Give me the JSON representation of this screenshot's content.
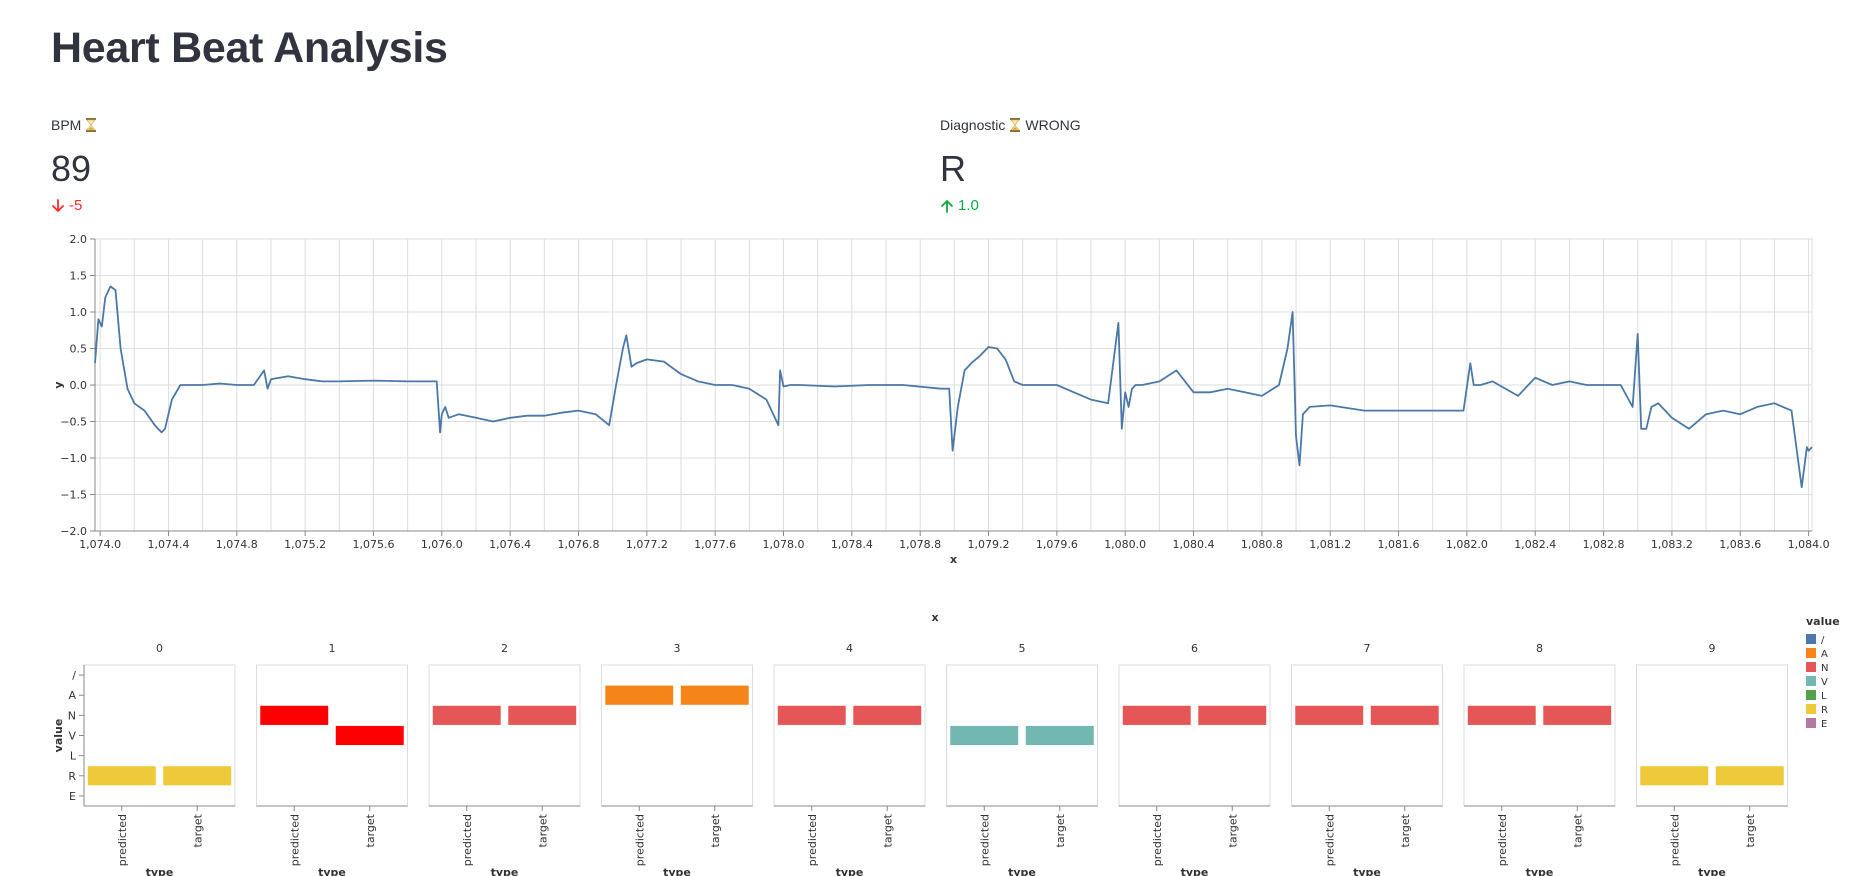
{
  "page": {
    "title": "Heart Beat Analysis"
  },
  "metrics": {
    "bpm": {
      "label": "BPM",
      "icon": "hourglass-icon",
      "value": "89",
      "delta": "-5",
      "delta_direction": "down"
    },
    "diagnostic": {
      "label": "Diagnostic",
      "icon": "hourglass-icon",
      "label_suffix": "WRONG",
      "value": "R",
      "delta": "1.0",
      "delta_direction": "up"
    }
  },
  "colors": {
    "line": "#4c78a8",
    "delta_down": "#ff2b2b",
    "delta_up": "#09ab3b",
    "highlight_red": "#ff0000"
  },
  "chart_data": [
    {
      "type": "line",
      "xlabel": "x",
      "ylabel": "y",
      "xlim": [
        1073.97,
        1084.02
      ],
      "ylim": [
        -2.0,
        2.0
      ],
      "x_ticks": [
        "1,074.0",
        "1,074.4",
        "1,074.8",
        "1,075.2",
        "1,075.6",
        "1,076.0",
        "1,076.4",
        "1,076.8",
        "1,077.2",
        "1,077.6",
        "1,078.0",
        "1,078.4",
        "1,078.8",
        "1,079.2",
        "1,079.6",
        "1,080.0",
        "1,080.4",
        "1,080.8",
        "1,081.2",
        "1,081.6",
        "1,082.0",
        "1,082.4",
        "1,082.8",
        "1,083.2",
        "1,083.6",
        "1,084.0"
      ],
      "y_ticks": [
        "2.0",
        "1.5",
        "1.0",
        "0.5",
        "0.0",
        "−0.5",
        "−1.0",
        "−1.5",
        "−2.0"
      ],
      "grid": true,
      "series": [
        {
          "x": [
            1073.97,
            1073.99,
            1074.01,
            1074.03,
            1074.06,
            1074.09,
            1074.12,
            1074.16,
            1074.2,
            1074.26,
            1074.32,
            1074.36,
            1074.38,
            1074.42,
            1074.47,
            1074.52,
            1074.6,
            1074.7,
            1074.8,
            1074.9,
            1074.96,
            1074.98,
            1075.0,
            1075.05,
            1075.1,
            1075.2,
            1075.3,
            1075.4,
            1075.6,
            1075.8,
            1075.97,
            1075.99,
            1076.0,
            1076.02,
            1076.04,
            1076.1,
            1076.2,
            1076.3,
            1076.4,
            1076.5,
            1076.6,
            1076.7,
            1076.8,
            1076.9,
            1076.98,
            1077.02,
            1077.06,
            1077.08,
            1077.11,
            1077.14,
            1077.2,
            1077.3,
            1077.4,
            1077.5,
            1077.6,
            1077.7,
            1077.8,
            1077.9,
            1077.97,
            1077.98,
            1078.0,
            1078.04,
            1078.1,
            1078.3,
            1078.5,
            1078.7,
            1078.92,
            1078.97,
            1078.99,
            1079.02,
            1079.06,
            1079.1,
            1079.15,
            1079.2,
            1079.25,
            1079.3,
            1079.35,
            1079.4,
            1079.5,
            1079.6,
            1079.7,
            1079.8,
            1079.9,
            1079.96,
            1079.98,
            1080.0,
            1080.02,
            1080.04,
            1080.06,
            1080.1,
            1080.2,
            1080.3,
            1080.4,
            1080.5,
            1080.6,
            1080.7,
            1080.8,
            1080.9,
            1080.95,
            1080.98,
            1081.0,
            1081.02,
            1081.04,
            1081.08,
            1081.2,
            1081.4,
            1081.6,
            1081.8,
            1081.98,
            1082.02,
            1082.04,
            1082.08,
            1082.15,
            1082.3,
            1082.4,
            1082.5,
            1082.6,
            1082.7,
            1082.8,
            1082.9,
            1082.97,
            1083.0,
            1083.02,
            1083.05,
            1083.08,
            1083.12,
            1083.2,
            1083.3,
            1083.4,
            1083.5,
            1083.6,
            1083.7,
            1083.8,
            1083.9,
            1083.96,
            1083.99,
            1084.0,
            1084.02
          ],
          "y": [
            0.3,
            0.9,
            0.8,
            1.2,
            1.35,
            1.3,
            0.5,
            -0.05,
            -0.25,
            -0.35,
            -0.55,
            -0.65,
            -0.6,
            -0.2,
            0.0,
            0.0,
            0.0,
            0.02,
            0.0,
            0.0,
            0.2,
            -0.05,
            0.08,
            0.1,
            0.12,
            0.08,
            0.05,
            0.05,
            0.06,
            0.05,
            0.05,
            -0.65,
            -0.4,
            -0.3,
            -0.45,
            -0.4,
            -0.45,
            -0.5,
            -0.45,
            -0.42,
            -0.42,
            -0.38,
            -0.35,
            -0.4,
            -0.55,
            0.0,
            0.5,
            0.68,
            0.25,
            0.3,
            0.35,
            0.32,
            0.15,
            0.05,
            0.0,
            0.0,
            -0.05,
            -0.2,
            -0.55,
            0.2,
            -0.02,
            0.0,
            0.0,
            -0.02,
            0.0,
            0.0,
            -0.05,
            -0.05,
            -0.9,
            -0.3,
            0.2,
            0.3,
            0.4,
            0.52,
            0.5,
            0.35,
            0.05,
            0.0,
            0.0,
            0.0,
            -0.1,
            -0.2,
            -0.25,
            0.85,
            -0.6,
            -0.1,
            -0.3,
            -0.05,
            0.0,
            0.0,
            0.05,
            0.2,
            -0.1,
            -0.1,
            -0.05,
            -0.1,
            -0.15,
            0.0,
            0.5,
            1.0,
            -0.7,
            -1.1,
            -0.4,
            -0.3,
            -0.28,
            -0.35,
            -0.35,
            -0.35,
            -0.35,
            0.3,
            0.0,
            0.0,
            0.05,
            -0.15,
            0.1,
            0.0,
            0.05,
            0.0,
            0.0,
            0.0,
            -0.3,
            0.7,
            -0.6,
            -0.6,
            -0.3,
            -0.25,
            -0.45,
            -0.6,
            -0.4,
            -0.35,
            -0.4,
            -0.3,
            -0.25,
            -0.35,
            -1.4,
            -0.85,
            -0.9,
            -0.85
          ]
        }
      ]
    },
    {
      "type": "heatmap",
      "title": "x",
      "facet_label": "x",
      "xlabel": "type",
      "ylabel": "value",
      "x_categories": [
        "predicted",
        "target"
      ],
      "y_categories": [
        "/",
        "A",
        "N",
        "V",
        "L",
        "R",
        "E"
      ],
      "legend": {
        "title": "value",
        "position": "right",
        "items": [
          {
            "label": "/",
            "color": "#4c78a8"
          },
          {
            "label": "A",
            "color": "#f58518"
          },
          {
            "label": "N",
            "color": "#e45756"
          },
          {
            "label": "V",
            "color": "#72b7b2"
          },
          {
            "label": "L",
            "color": "#54a24b"
          },
          {
            "label": "R",
            "color": "#eeca3b"
          },
          {
            "label": "E",
            "color": "#b279a2"
          }
        ]
      },
      "facets": [
        {
          "label": "0",
          "predicted": "R",
          "target": "R",
          "highlight": false
        },
        {
          "label": "1",
          "predicted": "N",
          "target": "V",
          "highlight": true
        },
        {
          "label": "2",
          "predicted": "N",
          "target": "N",
          "highlight": false
        },
        {
          "label": "3",
          "predicted": "A",
          "target": "A",
          "highlight": false
        },
        {
          "label": "4",
          "predicted": "N",
          "target": "N",
          "highlight": false
        },
        {
          "label": "5",
          "predicted": "V",
          "target": "V",
          "highlight": false
        },
        {
          "label": "6",
          "predicted": "N",
          "target": "N",
          "highlight": false
        },
        {
          "label": "7",
          "predicted": "N",
          "target": "N",
          "highlight": false
        },
        {
          "label": "8",
          "predicted": "N",
          "target": "N",
          "highlight": false
        },
        {
          "label": "9",
          "predicted": "R",
          "target": "R",
          "highlight": false
        }
      ]
    }
  ]
}
